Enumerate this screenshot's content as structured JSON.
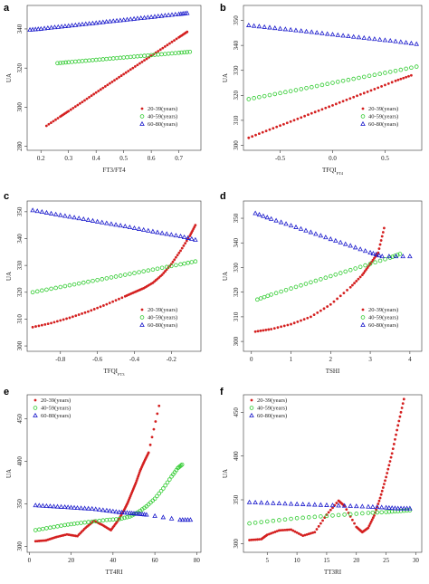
{
  "figure": {
    "panels": [
      {
        "letter": "a"
      },
      {
        "letter": "b"
      },
      {
        "letter": "c"
      },
      {
        "letter": "d"
      },
      {
        "letter": "e"
      },
      {
        "letter": "f"
      }
    ]
  },
  "chart_data": [
    {
      "type": "scatter",
      "panel": "a",
      "xlabel": "FT3/FT4",
      "ylabel": "UA",
      "xlim": [
        0.15,
        0.78
      ],
      "ylim": [
        278,
        352
      ],
      "xticks": [
        0.2,
        0.3,
        0.4,
        0.5,
        0.6,
        0.7
      ],
      "xtick_labels": [
        "0.2",
        "0.3",
        "0.4",
        "0.5",
        "0.6",
        "0.7"
      ],
      "yticks": [
        280,
        300,
        320,
        340
      ],
      "ytick_labels": [
        "280",
        "300",
        "320",
        "340"
      ],
      "legend": {
        "position": "bottom-right",
        "entries": [
          "20-39(years)",
          "40-59(years)",
          "60-80(years)"
        ]
      },
      "series": [
        {
          "name": "20-39(years)",
          "color": "#d42020",
          "marker": "dot",
          "x": [
            0.22,
            0.27,
            0.3,
            0.35,
            0.4,
            0.45,
            0.5,
            0.55,
            0.6,
            0.65,
            0.7,
            0.73
          ],
          "y": [
            290.5,
            295.2,
            298.0,
            302.7,
            307.5,
            312.2,
            316.9,
            321.6,
            326.3,
            331.0,
            335.7,
            338.5
          ]
        },
        {
          "name": "40-59(years)",
          "color": "#33cc33",
          "marker": "circle",
          "x": [
            0.26,
            0.3,
            0.35,
            0.4,
            0.45,
            0.5,
            0.55,
            0.6,
            0.65,
            0.7,
            0.74
          ],
          "y": [
            322.5,
            323.0,
            323.6,
            324.2,
            324.8,
            325.4,
            326.0,
            326.6,
            327.2,
            327.8,
            328.3
          ]
        },
        {
          "name": "60-80(years)",
          "color": "#1a1acc",
          "marker": "triangle",
          "x": [
            0.16,
            0.2,
            0.25,
            0.3,
            0.35,
            0.4,
            0.45,
            0.5,
            0.55,
            0.6,
            0.65,
            0.7,
            0.73
          ],
          "y": [
            339.5,
            340.0,
            340.8,
            341.5,
            342.3,
            343.0,
            343.8,
            344.5,
            345.3,
            346.0,
            346.8,
            347.5,
            348.0
          ]
        }
      ]
    },
    {
      "type": "scatter",
      "panel": "b",
      "xlabel": "TFQI",
      "xlabel_sub": "FT4",
      "ylabel": "UA",
      "xlim": [
        -0.85,
        0.85
      ],
      "ylim": [
        298,
        356
      ],
      "xticks": [
        -0.5,
        0.0,
        0.5
      ],
      "xtick_labels": [
        "-0.5",
        "0.0",
        "0.5"
      ],
      "yticks": [
        300,
        310,
        320,
        330,
        340,
        350
      ],
      "ytick_labels": [
        "300",
        "310",
        "320",
        "330",
        "340",
        "350"
      ],
      "legend": {
        "position": "bottom-right",
        "entries": [
          "20-39(years)",
          "40-59(years)",
          "60-80(years)"
        ]
      },
      "series": [
        {
          "name": "20-39(years)",
          "color": "#d42020",
          "marker": "dot",
          "x": [
            -0.8,
            -0.6,
            -0.4,
            -0.2,
            0.0,
            0.2,
            0.4,
            0.6,
            0.75
          ],
          "y": [
            303.0,
            306.3,
            309.5,
            312.8,
            316.0,
            319.3,
            322.5,
            325.8,
            328.0
          ]
        },
        {
          "name": "40-59(years)",
          "color": "#33cc33",
          "marker": "circle",
          "x": [
            -0.8,
            -0.6,
            -0.4,
            -0.2,
            0.0,
            0.2,
            0.4,
            0.6,
            0.8
          ],
          "y": [
            318.5,
            320.1,
            321.7,
            323.3,
            325.0,
            326.6,
            328.2,
            329.8,
            331.5
          ]
        },
        {
          "name": "60-80(years)",
          "color": "#1a1acc",
          "marker": "triangle",
          "x": [
            -0.8,
            -0.6,
            -0.4,
            -0.2,
            0.0,
            0.2,
            0.4,
            0.6,
            0.8
          ],
          "y": [
            348.0,
            347.1,
            346.2,
            345.3,
            344.3,
            343.4,
            342.5,
            341.6,
            340.5
          ]
        }
      ]
    },
    {
      "type": "line",
      "panel": "c",
      "xlabel": "TFQI",
      "xlabel_sub": "FT3",
      "ylabel": "UA",
      "xlim": [
        -0.98,
        -0.04
      ],
      "ylim": [
        298,
        354
      ],
      "xticks": [
        -0.8,
        -0.6,
        -0.4,
        -0.2
      ],
      "xtick_labels": [
        "-0.8",
        "-0.6",
        "-0.4",
        "-0.2"
      ],
      "yticks": [
        300,
        310,
        320,
        330,
        340,
        350
      ],
      "ytick_labels": [
        "300",
        "310",
        "320",
        "330",
        "340",
        "350"
      ],
      "legend": {
        "position": "bottom-right",
        "entries": [
          "20-39(years)",
          "40-59(years)",
          "60-80(years)"
        ]
      },
      "series": [
        {
          "name": "20-39(years)",
          "color": "#d42020",
          "marker": "dot",
          "x": [
            -0.95,
            -0.85,
            -0.75,
            -0.65,
            -0.55,
            -0.45,
            -0.4,
            -0.35,
            -0.3,
            -0.25,
            -0.2,
            -0.15,
            -0.1,
            -0.07
          ],
          "y": [
            307.0,
            308.5,
            310.5,
            312.8,
            315.5,
            318.5,
            320.0,
            321.5,
            323.5,
            326.5,
            330.5,
            335.5,
            341.0,
            345.0
          ]
        },
        {
          "name": "40-59(years)",
          "color": "#33cc33",
          "marker": "circle",
          "x": [
            -0.95,
            -0.85,
            -0.75,
            -0.65,
            -0.55,
            -0.45,
            -0.35,
            -0.25,
            -0.15,
            -0.07
          ],
          "y": [
            320.0,
            321.3,
            322.6,
            323.9,
            325.2,
            326.5,
            327.8,
            329.1,
            330.4,
            331.5
          ]
        },
        {
          "name": "60-80(years)",
          "color": "#1a1acc",
          "marker": "triangle",
          "x": [
            -0.95,
            -0.85,
            -0.75,
            -0.65,
            -0.55,
            -0.45,
            -0.35,
            -0.25,
            -0.15,
            -0.07
          ],
          "y": [
            350.5,
            349.3,
            348.1,
            346.9,
            345.7,
            344.5,
            343.2,
            342.0,
            340.8,
            339.5
          ]
        }
      ]
    },
    {
      "type": "scatter",
      "panel": "d",
      "xlabel": "TSHI",
      "ylabel": "UA",
      "xlim": [
        -0.2,
        4.3
      ],
      "ylim": [
        296,
        357
      ],
      "xticks": [
        0,
        1,
        2,
        3,
        4
      ],
      "xtick_labels": [
        "0",
        "1",
        "2",
        "3",
        "4"
      ],
      "yticks": [
        300,
        310,
        320,
        330,
        340,
        350
      ],
      "ytick_labels": [
        "300",
        "310",
        "320",
        "330",
        "340",
        "350"
      ],
      "legend": {
        "position": "bottom-right",
        "entries": [
          "20-39(years)",
          "40-59(years)",
          "60-80(years)"
        ]
      },
      "series": [
        {
          "name": "20-39(years)",
          "color": "#d42020",
          "marker": "dot",
          "x": [
            0.1,
            0.5,
            1.0,
            1.5,
            2.0,
            2.5,
            2.8,
            3.0,
            3.2,
            3.35
          ],
          "y": [
            304.0,
            305.0,
            307.0,
            310.0,
            315.0,
            322.0,
            327.0,
            331.5,
            336.0,
            346.0
          ]
        },
        {
          "name": "40-59(years)",
          "color": "#33cc33",
          "marker": "circle",
          "x": [
            0.15,
            0.5,
            1.0,
            1.5,
            2.0,
            2.5,
            3.0,
            3.5,
            3.75
          ],
          "y": [
            317.0,
            319.0,
            321.5,
            324.0,
            326.5,
            329.0,
            331.5,
            334.0,
            335.5
          ]
        },
        {
          "name": "60-80(years)",
          "color": "#1a1acc",
          "marker": "triangle",
          "x": [
            0.1,
            0.5,
            1.0,
            1.5,
            2.0,
            2.5,
            3.0,
            3.3,
            4.0
          ],
          "y": [
            352.0,
            349.7,
            347.0,
            344.3,
            341.5,
            338.8,
            336.0,
            334.5,
            334.5
          ]
        }
      ]
    },
    {
      "type": "scatter",
      "panel": "e",
      "xlabel": "TT4RI",
      "ylabel": "UA",
      "xlim": [
        -1,
        82
      ],
      "ylim": [
        293,
        478
      ],
      "xticks": [
        0,
        20,
        40,
        60,
        80
      ],
      "xtick_labels": [
        "0",
        "20",
        "40",
        "60",
        "80"
      ],
      "yticks": [
        300,
        350,
        400,
        450
      ],
      "ytick_labels": [
        "300",
        "350",
        "400",
        "450"
      ],
      "legend": {
        "position": "top-left",
        "entries": [
          "20-39(years)",
          "40-59(years)",
          "60-80(years)"
        ]
      },
      "series": [
        {
          "name": "20-39(years)",
          "color": "#d42020",
          "marker": "dot",
          "x": [
            3,
            8,
            13,
            18,
            23,
            27,
            31,
            35,
            39,
            42,
            45,
            47,
            49,
            51,
            53,
            55,
            57,
            62
          ],
          "y": [
            306,
            307,
            311,
            314,
            312,
            322,
            330,
            325,
            319,
            329,
            341,
            351,
            363,
            375,
            389,
            400,
            410,
            465
          ]
        },
        {
          "name": "40-59(years)",
          "color": "#33cc33",
          "marker": "circle",
          "x": [
            3,
            10,
            17,
            23,
            30,
            37,
            43,
            48,
            52,
            56,
            60,
            64,
            68,
            71,
            73
          ],
          "y": [
            319,
            322,
            325,
            327,
            329,
            331,
            332,
            335,
            340,
            347,
            356,
            368,
            382,
            392,
            396
          ]
        },
        {
          "name": "60-80(years)",
          "color": "#1a1acc",
          "marker": "triangle",
          "x": [
            3,
            10,
            17,
            23,
            30,
            37,
            43,
            48,
            52,
            56,
            72,
            77
          ],
          "y": [
            348,
            347,
            346,
            345,
            344,
            342,
            340,
            339,
            338,
            337,
            331,
            331
          ]
        }
      ]
    },
    {
      "type": "scatter",
      "panel": "f",
      "xlabel": "TT3RI",
      "ylabel": "UA",
      "xlim": [
        1,
        31
      ],
      "ylim": [
        290,
        470
      ],
      "xticks": [
        5,
        10,
        15,
        20,
        25,
        30
      ],
      "xtick_labels": [
        "5",
        "10",
        "15",
        "20",
        "25",
        "30"
      ],
      "yticks": [
        300,
        350,
        400,
        450
      ],
      "ytick_labels": [
        "300",
        "350",
        "400",
        "450"
      ],
      "legend": {
        "position": "top-left",
        "entries": [
          "20-39(years)",
          "40-59(years)",
          "60-80(years)"
        ]
      },
      "series": [
        {
          "name": "20-39(years)",
          "color": "#d42020",
          "marker": "dot",
          "x": [
            2,
            4,
            5,
            7,
            9,
            11,
            13,
            15,
            17,
            18,
            20,
            21,
            22,
            23,
            24,
            25,
            26,
            27,
            28
          ],
          "y": [
            304,
            305,
            310,
            315,
            316,
            309,
            313,
            333,
            349,
            343,
            319,
            313,
            318,
            332,
            352,
            376,
            403,
            435,
            465
          ]
        },
        {
          "name": "40-59(years)",
          "color": "#33cc33",
          "marker": "circle",
          "x": [
            2,
            6,
            10,
            14,
            18,
            22,
            25,
            27,
            29
          ],
          "y": [
            323,
            326,
            329,
            331,
            333,
            335,
            336,
            337,
            338
          ]
        },
        {
          "name": "60-80(years)",
          "color": "#1a1acc",
          "marker": "triangle",
          "x": [
            2,
            6,
            10,
            14,
            18,
            22,
            25,
            27,
            29
          ],
          "y": [
            347,
            346,
            345,
            344,
            343,
            342,
            341,
            340,
            340
          ]
        }
      ]
    }
  ]
}
